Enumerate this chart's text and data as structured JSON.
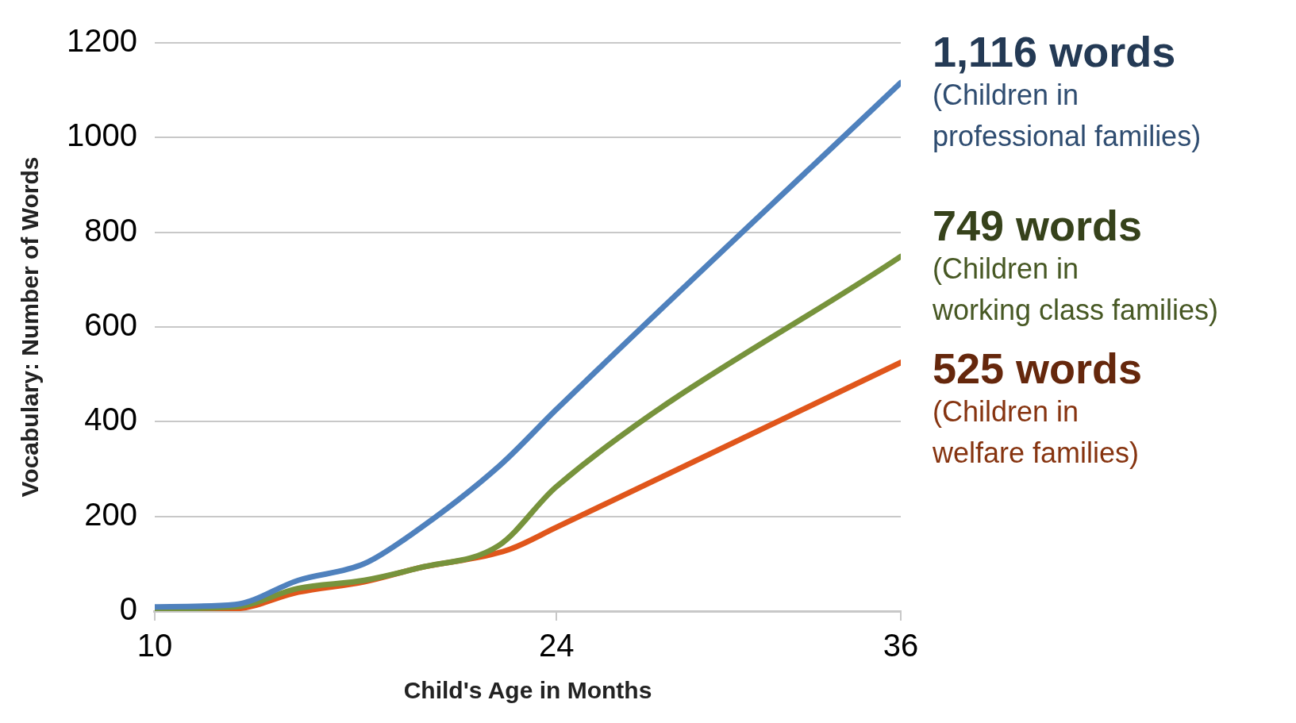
{
  "chart_data": {
    "type": "line",
    "xlabel": "Child's Age in Months",
    "ylabel": "Vocabulary: Number of Words",
    "xlim": [
      10,
      36
    ],
    "xticks": [
      10,
      24,
      36
    ],
    "ylim": [
      0,
      1200
    ],
    "yticks": [
      0,
      200,
      400,
      600,
      800,
      1000,
      1200
    ],
    "grid": "y",
    "legend": false,
    "marker": "none",
    "line_style": "solid",
    "series": [
      {
        "name": "(Children in professional families)",
        "color": "#4f81bd",
        "x": [
          10,
          12.8,
          15,
          17.3,
          18.9,
          22,
          24,
          36
        ],
        "values": [
          9,
          14,
          65,
          100,
          160,
          306,
          426,
          1116
        ]
      },
      {
        "name": "(Children in working class families)",
        "color": "#77933c",
        "x": [
          10,
          12.8,
          15,
          17.3,
          19.2,
          22,
          24,
          36
        ],
        "values": [
          5,
          9,
          48,
          65,
          91,
          139,
          263,
          749
        ]
      },
      {
        "name": "(Children in welfare families)",
        "color": "#e0561b",
        "x": [
          10,
          12.8,
          15,
          17.3,
          19.2,
          22.3,
          24,
          36
        ],
        "values": [
          3,
          5,
          40,
          62,
          91,
          129,
          177,
          525
        ]
      }
    ],
    "annotations": [
      "1,116 words",
      "749 words",
      "525 words"
    ]
  }
}
